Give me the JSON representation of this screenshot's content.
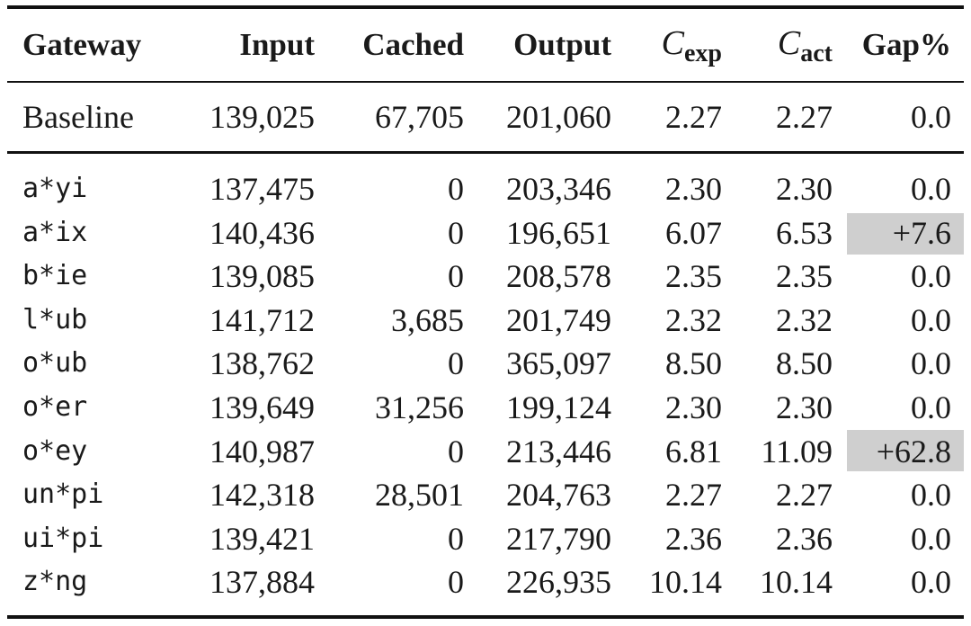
{
  "table": {
    "header": [
      "Gateway",
      "Input",
      "Cached",
      "Output",
      {
        "symbol": "C",
        "sub": "exp"
      },
      {
        "symbol": "C",
        "sub": "act"
      },
      "Gap%"
    ],
    "baseline": [
      "Baseline",
      "139,025",
      "67,705",
      "201,060",
      "2.27",
      "2.27",
      "0.0"
    ],
    "rows": [
      [
        "a*yi",
        "137,475",
        "0",
        "203,346",
        "2.30",
        "2.30",
        "0.0"
      ],
      [
        "a*ix",
        "140,436",
        "0",
        "196,651",
        "6.07",
        "6.53",
        "+7.6"
      ],
      [
        "b*ie",
        "139,085",
        "0",
        "208,578",
        "2.35",
        "2.35",
        "0.0"
      ],
      [
        "l*ub",
        "141,712",
        "3,685",
        "201,749",
        "2.32",
        "2.32",
        "0.0"
      ],
      [
        "o*ub",
        "138,762",
        "0",
        "365,097",
        "8.50",
        "8.50",
        "0.0"
      ],
      [
        "o*er",
        "139,649",
        "31,256",
        "199,124",
        "2.30",
        "2.30",
        "0.0"
      ],
      [
        "o*ey",
        "140,987",
        "0",
        "213,446",
        "6.81",
        "11.09",
        "+62.8"
      ],
      [
        "un*pi",
        "142,318",
        "28,501",
        "204,763",
        "2.27",
        "2.27",
        "0.0"
      ],
      [
        "ui*pi",
        "139,421",
        "0",
        "217,790",
        "2.36",
        "2.36",
        "0.0"
      ],
      [
        "z*ng",
        "137,884",
        "0",
        "226,935",
        "10.14",
        "10.14",
        "0.0"
      ]
    ]
  }
}
